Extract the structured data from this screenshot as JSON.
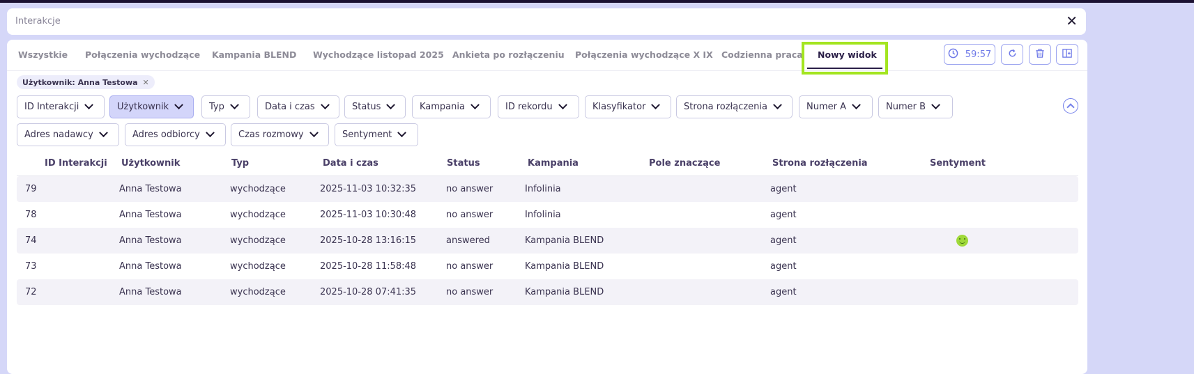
{
  "header": {
    "title": "Interakcje"
  },
  "tabs": [
    {
      "label": "Wszystkie",
      "active": false
    },
    {
      "label": "Połączenia wychodzące",
      "active": false
    },
    {
      "label": "Kampania BLEND",
      "active": false
    },
    {
      "label": "Wychodzące listopad 2025",
      "active": false
    },
    {
      "label": "Ankieta po rozłączeniu",
      "active": false
    },
    {
      "label": "Połączenia wychodzące X IX",
      "active": false
    },
    {
      "label": "Codzienna praca",
      "active": false
    },
    {
      "label": "Nowy widok",
      "active": true
    }
  ],
  "toolbar": {
    "timer": "59:57"
  },
  "active_filter_chip": "Użytkownik: Anna Testowa",
  "filters": [
    "ID Interakcji",
    "Użytkownik",
    "Typ",
    "Data i czas",
    "Status",
    "Kampania",
    "ID rekordu",
    "Klasyfikator",
    "Strona rozłączenia",
    "Numer A",
    "Numer B",
    "Adres nadawcy",
    "Adres odbiorcy",
    "Czas rozmowy",
    "Sentyment"
  ],
  "table": {
    "columns": [
      "ID Interakcji",
      "Użytkownik",
      "Typ",
      "Data i czas",
      "Status",
      "Kampania",
      "Pole znaczące",
      "Strona rozłączenia",
      "Sentyment"
    ],
    "rows": [
      [
        "79",
        "Anna Testowa",
        "wychodzące",
        "2025-11-03 10:32:35",
        "no answer",
        "Infolinia",
        "",
        "agent",
        ""
      ],
      [
        "78",
        "Anna Testowa",
        "wychodzące",
        "2025-11-03 10:30:48",
        "no answer",
        "Infolinia",
        "",
        "agent",
        ""
      ],
      [
        "74",
        "Anna Testowa",
        "wychodzące",
        "2025-10-28 13:16:15",
        "answered",
        "Kampania BLEND",
        "",
        "agent",
        "positive"
      ],
      [
        "73",
        "Anna Testowa",
        "wychodzące",
        "2025-10-28 11:58:48",
        "no answer",
        "Kampania BLEND",
        "",
        "agent",
        ""
      ],
      [
        "72",
        "Anna Testowa",
        "wychodzące",
        "2025-10-28 07:41:35",
        "no answer",
        "Kampania BLEND",
        "",
        "agent",
        ""
      ]
    ]
  },
  "colors": {
    "accent": "#6f7ae8",
    "highlight": "#a3e520",
    "sentiment_positive": "#9fd93a"
  }
}
